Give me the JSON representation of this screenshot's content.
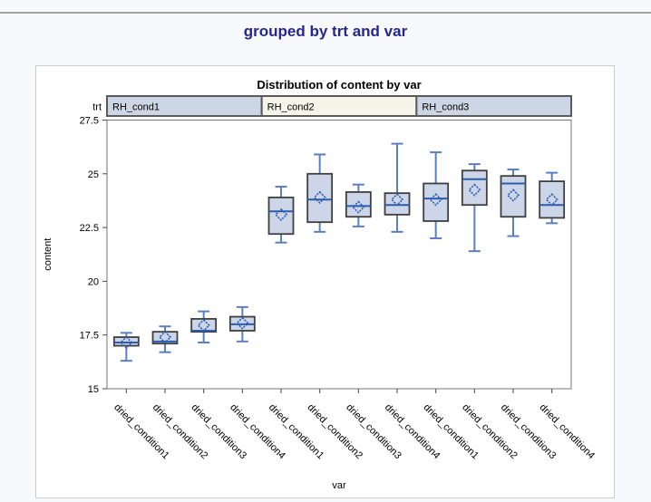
{
  "page": {
    "title": "grouped by trt and var",
    "title_color": "#23278f"
  },
  "chart_data": {
    "type": "boxplot",
    "title": "Distribution of content by var",
    "band_label": "trt",
    "xlabel": "var",
    "ylabel": "content",
    "ylim": [
      15,
      27.5
    ],
    "yticks": [
      {
        "label": "27.5",
        "value": 27.5
      },
      {
        "label": "25",
        "value": 25
      },
      {
        "label": "22.5",
        "value": 22.5
      },
      {
        "label": "20",
        "value": 20
      },
      {
        "label": "17.5",
        "value": 17.5
      },
      {
        "label": "15",
        "value": 15
      }
    ],
    "grid": false,
    "legend": "none",
    "groups": [
      {
        "label": "RH_cond1",
        "fill": "#cdd6e4"
      },
      {
        "label": "RH_cond2",
        "fill": "#f6f5e9"
      },
      {
        "label": "RH_cond3",
        "fill": "#cdd6e4"
      }
    ],
    "boxes": [
      {
        "group": "RH_cond1",
        "category": "dried_condition1",
        "whisker_low": 16.3,
        "q1": 17.0,
        "median": 17.15,
        "q3": 17.4,
        "whisker_high": 17.6,
        "mean": 17.15
      },
      {
        "group": "RH_cond1",
        "category": "dried_condition2",
        "whisker_low": 16.7,
        "q1": 17.1,
        "median": 17.2,
        "q3": 17.65,
        "whisker_high": 17.9,
        "mean": 17.4
      },
      {
        "group": "RH_cond1",
        "category": "dried_condition3",
        "whisker_low": 17.15,
        "q1": 17.65,
        "median": 17.7,
        "q3": 18.25,
        "whisker_high": 18.6,
        "mean": 17.95
      },
      {
        "group": "RH_cond1",
        "category": "dried_condition4",
        "whisker_low": 17.2,
        "q1": 17.7,
        "median": 18.0,
        "q3": 18.35,
        "whisker_high": 18.8,
        "mean": 18.05
      },
      {
        "group": "RH_cond2",
        "category": "dried_condition1",
        "whisker_low": 21.8,
        "q1": 22.2,
        "median": 23.25,
        "q3": 23.9,
        "whisker_high": 24.4,
        "mean": 23.1
      },
      {
        "group": "RH_cond2",
        "category": "dried_condition2",
        "whisker_low": 22.3,
        "q1": 22.75,
        "median": 23.8,
        "q3": 25.0,
        "whisker_high": 25.9,
        "mean": 23.9
      },
      {
        "group": "RH_cond2",
        "category": "dried_condition3",
        "whisker_low": 22.55,
        "q1": 23.0,
        "median": 23.5,
        "q3": 24.15,
        "whisker_high": 24.5,
        "mean": 23.45
      },
      {
        "group": "RH_cond2",
        "category": "dried_condition4",
        "whisker_low": 22.3,
        "q1": 23.1,
        "median": 23.55,
        "q3": 24.1,
        "whisker_high": 26.4,
        "mean": 23.8
      },
      {
        "group": "RH_cond3",
        "category": "dried_condition1",
        "whisker_low": 22.0,
        "q1": 22.8,
        "median": 23.85,
        "q3": 24.55,
        "whisker_high": 26.0,
        "mean": 23.8
      },
      {
        "group": "RH_cond3",
        "category": "dried_condition2",
        "whisker_low": 21.4,
        "q1": 23.55,
        "median": 24.75,
        "q3": 25.15,
        "whisker_high": 25.45,
        "mean": 24.25
      },
      {
        "group": "RH_cond3",
        "category": "dried_condition3",
        "whisker_low": 22.1,
        "q1": 23.0,
        "median": 24.55,
        "q3": 24.9,
        "whisker_high": 25.2,
        "mean": 24.0
      },
      {
        "group": "RH_cond3",
        "category": "dried_condition4",
        "whisker_low": 22.7,
        "q1": 22.95,
        "median": 23.55,
        "q3": 24.65,
        "whisker_high": 25.05,
        "mean": 23.8
      }
    ],
    "colors": {
      "box_fill": "#ccd6e8",
      "box_border": "#3f3f3f",
      "whisker": "#5b7fc1",
      "median": "#2d5cae",
      "mean_marker": "#2d5cae",
      "plot_border": "#757575",
      "band_border": "#5a5a5a",
      "tick": "#4a4a4a",
      "text": "#000000"
    }
  }
}
